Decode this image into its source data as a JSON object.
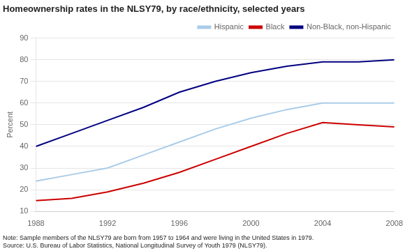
{
  "chart_data": {
    "type": "line",
    "title": "Homeownership rates in the NLSY79, by race/ethnicity, selected years",
    "y_label": "Percent",
    "annotations": [
      "Note: Sample members of the NLSY79 are born from 1957 to 1964 and were living in the United States in 1979.",
      "Source: U.S. Bureau of Labor Statistics, National Longitudinal Survey of Youth 1979 (NLSY79)."
    ],
    "x": [
      1988,
      1990,
      1992,
      1994,
      1996,
      1998,
      2000,
      2002,
      2004,
      2006,
      2008
    ],
    "series": [
      {
        "name": "Hispanic",
        "color": "#aacce8",
        "values": [
          24,
          27,
          30,
          36,
          42,
          48,
          53,
          57,
          60,
          60,
          60
        ]
      },
      {
        "name": "Black",
        "color": "#cc0000",
        "values": [
          15,
          16,
          19,
          23,
          28,
          34,
          40,
          46,
          51,
          50,
          49
        ]
      },
      {
        "name": "Non-Black, non-Hispanic",
        "color": "#000080",
        "values": [
          40,
          46,
          52,
          58,
          65,
          70,
          74,
          77,
          79,
          79,
          80
        ]
      }
    ],
    "xlim": [
      1988,
      2008
    ],
    "xticks": [
      1988,
      1992,
      1996,
      2000,
      2004,
      2008
    ],
    "ylim": [
      10,
      90
    ],
    "yticks": [
      10,
      20,
      30,
      40,
      50,
      60,
      70,
      80,
      90
    ],
    "grid": true,
    "legend": "top"
  }
}
